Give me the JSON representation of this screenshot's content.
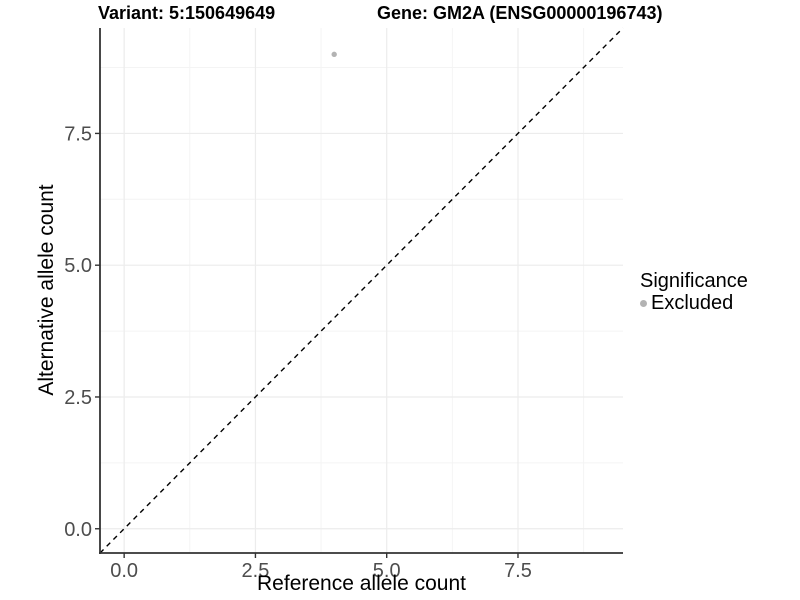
{
  "chart_data": {
    "type": "scatter",
    "title_left": "Variant: 5:150649649",
    "title_right": "Gene: GM2A (ENSG00000196743)",
    "xlabel": "Reference allele count",
    "ylabel": "Alternative allele count",
    "xlim": [
      -0.46,
      9.5
    ],
    "ylim": [
      -0.46,
      9.5
    ],
    "xticks": [
      0,
      2.5,
      5,
      7.5
    ],
    "xtick_labels": [
      "0.0",
      "2.5",
      "5.0",
      "7.5"
    ],
    "yticks": [
      0,
      2.5,
      5,
      7.5
    ],
    "ytick_labels": [
      "0.0",
      "2.5",
      "5.0",
      "7.5"
    ],
    "xminor": [
      1.25,
      3.75,
      6.25,
      8.75
    ],
    "yminor": [
      1.25,
      3.75,
      6.25,
      8.75
    ],
    "grid": true,
    "points": [
      {
        "x": 4,
        "y": 9,
        "group": "Excluded"
      }
    ],
    "reference_line": {
      "equation": "y = x",
      "style": "dashed",
      "color": "#000000"
    },
    "legend": {
      "position": "right",
      "title": "Significance",
      "items": [
        {
          "label": "Excluded",
          "color": "#b3b3b3"
        }
      ]
    },
    "colors": {
      "point": "#b3b3b3",
      "grid_major": "#ececec",
      "grid_minor": "#f4f4f4",
      "axis_line": "#333333",
      "tick_label": "#4d4d4d"
    }
  }
}
